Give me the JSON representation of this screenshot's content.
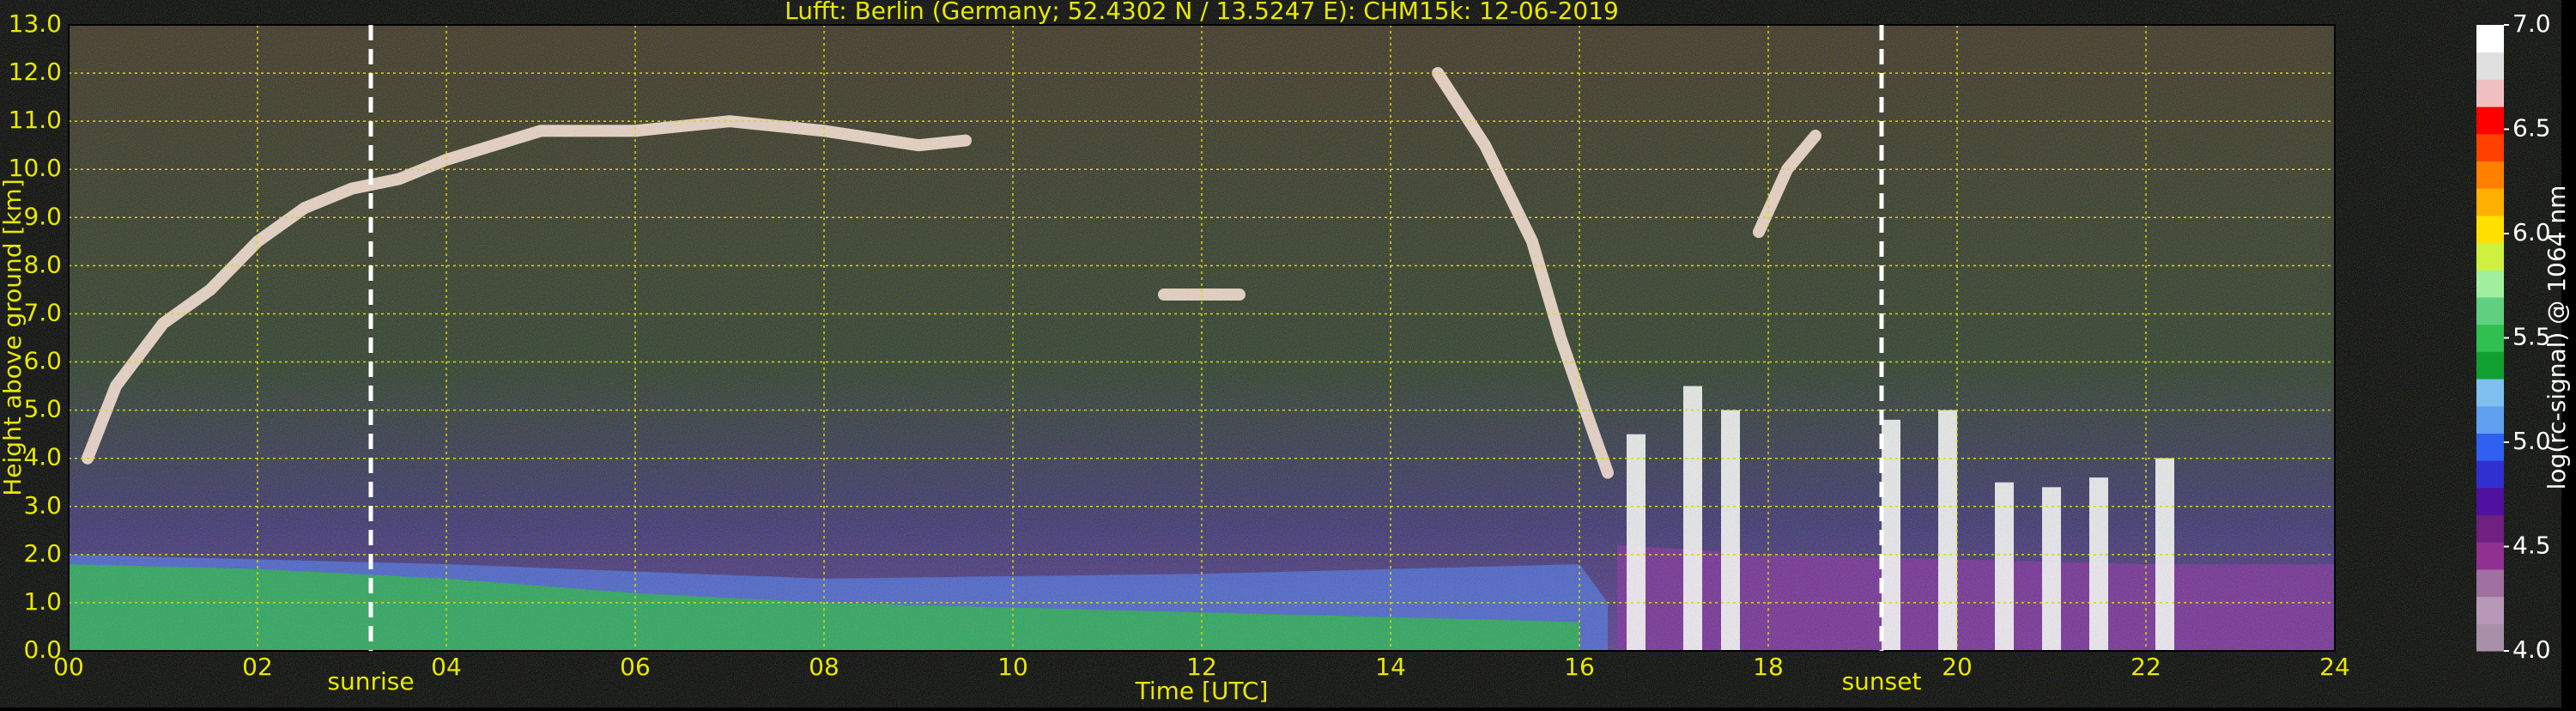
{
  "chart_data": {
    "type": "heatmap",
    "title": "Lufft: Berlin (Germany; 52.4302 N / 13.5247 E):    CHM15k: 12-06-2019",
    "xlabel": "Time [UTC]",
    "ylabel": "Height above ground [km]",
    "xlim": [
      0,
      24
    ],
    "xticks": [
      {
        "value": 0,
        "label": "00"
      },
      {
        "value": 2,
        "label": "02"
      },
      {
        "value": 4,
        "label": "04"
      },
      {
        "value": 6,
        "label": "06"
      },
      {
        "value": 8,
        "label": "08"
      },
      10,
      12,
      14,
      16,
      18,
      20,
      22,
      24
    ],
    "ylim": [
      0,
      13
    ],
    "yticks": [
      {
        "value": 0,
        "label": "0.0"
      },
      {
        "value": 1,
        "label": "1.0"
      },
      {
        "value": 2,
        "label": "2.0"
      },
      {
        "value": 3,
        "label": "3.0"
      },
      {
        "value": 4,
        "label": "4.0"
      },
      {
        "value": 5,
        "label": "5.0"
      },
      {
        "value": 6,
        "label": "6.0"
      },
      {
        "value": 7,
        "label": "7.0"
      },
      {
        "value": 8,
        "label": "8.0"
      },
      {
        "value": 9,
        "label": "9.0"
      },
      {
        "value": 10,
        "label": "10.0"
      },
      {
        "value": 11,
        "label": "11.0"
      },
      {
        "value": 12,
        "label": "12.0"
      },
      {
        "value": 13,
        "label": "13.0"
      }
    ],
    "grid": true,
    "grid_color": "#d8d800",
    "text_color": "#e8e800",
    "annotations": [
      {
        "text": "sunrise",
        "x": 3.2
      },
      {
        "text": "sunset",
        "x": 19.2
      }
    ],
    "areas": [
      {
        "color": "#7a2a9a",
        "x": [
          16.4,
          18,
          20,
          22,
          24
        ],
        "y": [
          2.2,
          2.0,
          1.9,
          1.8,
          1.8
        ]
      },
      {
        "color": "#4a68d8",
        "x": [
          0,
          4,
          8,
          12,
          16,
          16.3
        ],
        "y": [
          2.0,
          1.8,
          1.5,
          1.6,
          1.8,
          1.0
        ]
      },
      {
        "color": "#22b048",
        "x": [
          0,
          2,
          4,
          6,
          8,
          10,
          12,
          14,
          16
        ],
        "y": [
          1.8,
          1.7,
          1.5,
          1.2,
          1.0,
          0.9,
          0.8,
          0.7,
          0.6
        ]
      }
    ],
    "features": [
      {
        "color": "#ffe4d8",
        "x": [
          0.2,
          0.5,
          1.0,
          1.5,
          2.0,
          2.5,
          3.0,
          3.5,
          4.0,
          5.0,
          6.0,
          7.0,
          8.0,
          9.0,
          9.5
        ],
        "y": [
          4.0,
          5.5,
          6.8,
          7.5,
          8.5,
          9.2,
          9.6,
          9.8,
          10.2,
          10.8,
          10.8,
          11.0,
          10.8,
          10.5,
          10.6
        ]
      },
      {
        "color": "#ffe4d8",
        "x": [
          14.5,
          15.0,
          15.5,
          15.8,
          16.1,
          16.3
        ],
        "y": [
          12.0,
          10.5,
          8.5,
          6.5,
          4.8,
          3.7
        ]
      },
      {
        "color": "#ffe4d8",
        "x": [
          17.9,
          18.2,
          18.5
        ],
        "y": [
          8.7,
          10.0,
          10.7
        ]
      },
      {
        "color": "#ffe4d8",
        "x": [
          11.6,
          12.4
        ],
        "y": [
          7.4,
          7.4
        ]
      }
    ],
    "columns": {
      "color": "#ffffff",
      "x": [
        16.6,
        17.2,
        17.6,
        19.3,
        19.9,
        20.5,
        21.0,
        21.5,
        22.2
      ],
      "values": [
        4.5,
        5.5,
        5.0,
        4.8,
        5.0,
        3.5,
        3.4,
        3.6,
        4.0
      ]
    },
    "colorbar": {
      "label": "log(rc-signal) @ 1064 nm",
      "lim": [
        4,
        7
      ],
      "ticks": [
        {
          "value": 4,
          "label": "4.0"
        },
        {
          "value": 4.5,
          "label": "4.5"
        },
        {
          "value": 5,
          "label": "5.0"
        },
        {
          "value": 5.5,
          "label": "5.5"
        },
        {
          "value": 6,
          "label": "6.0"
        },
        {
          "value": 6.5,
          "label": "6.5"
        },
        {
          "value": 7,
          "label": "7.0"
        }
      ],
      "colors": [
        "#a890a8",
        "#b898b8",
        "#a070a0",
        "#903090",
        "#702080",
        "#5010a0",
        "#3030d0",
        "#3060f0",
        "#60a0f0",
        "#80c0f0",
        "#10a030",
        "#30c050",
        "#60d080",
        "#a0f0a0",
        "#d0f040",
        "#ffe000",
        "#ffb000",
        "#ff8000",
        "#ff4000",
        "#ff0000",
        "#f0c0c0",
        "#e0e0e0",
        "#ffffff"
      ]
    }
  }
}
